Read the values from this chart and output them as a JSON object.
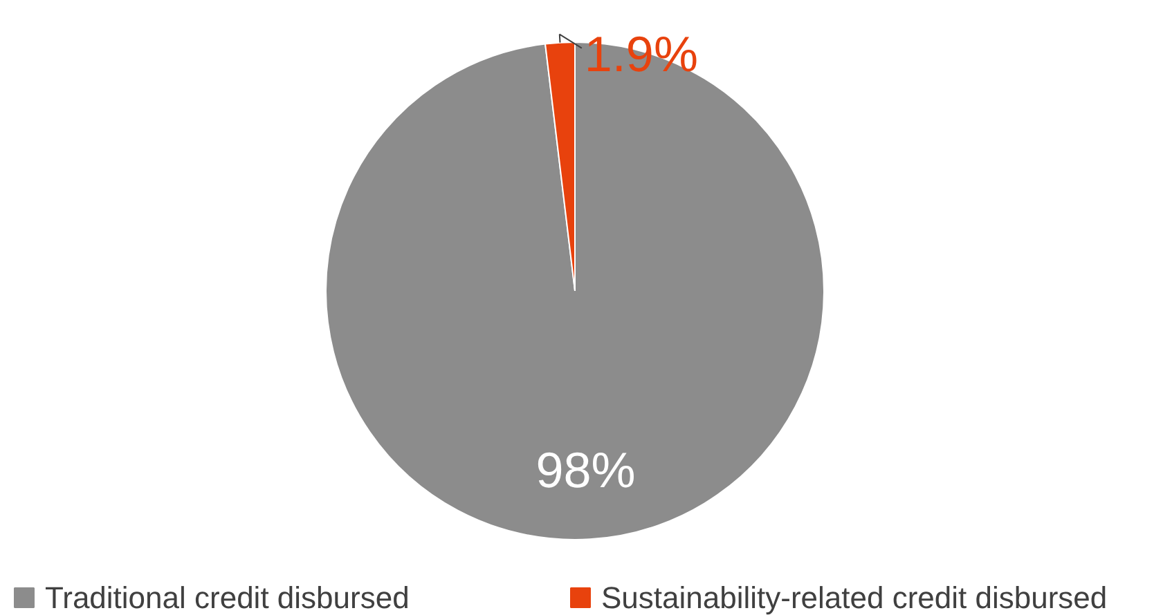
{
  "chart_data": {
    "type": "pie",
    "categories": [
      "Traditional credit disbursed",
      "Sustainability-related credit disbursed"
    ],
    "values": [
      98,
      1.9
    ],
    "colors": [
      "#8c8c8c",
      "#e8420d"
    ],
    "value_labels": [
      "98%",
      "1.9%"
    ],
    "legend": "bottom"
  }
}
